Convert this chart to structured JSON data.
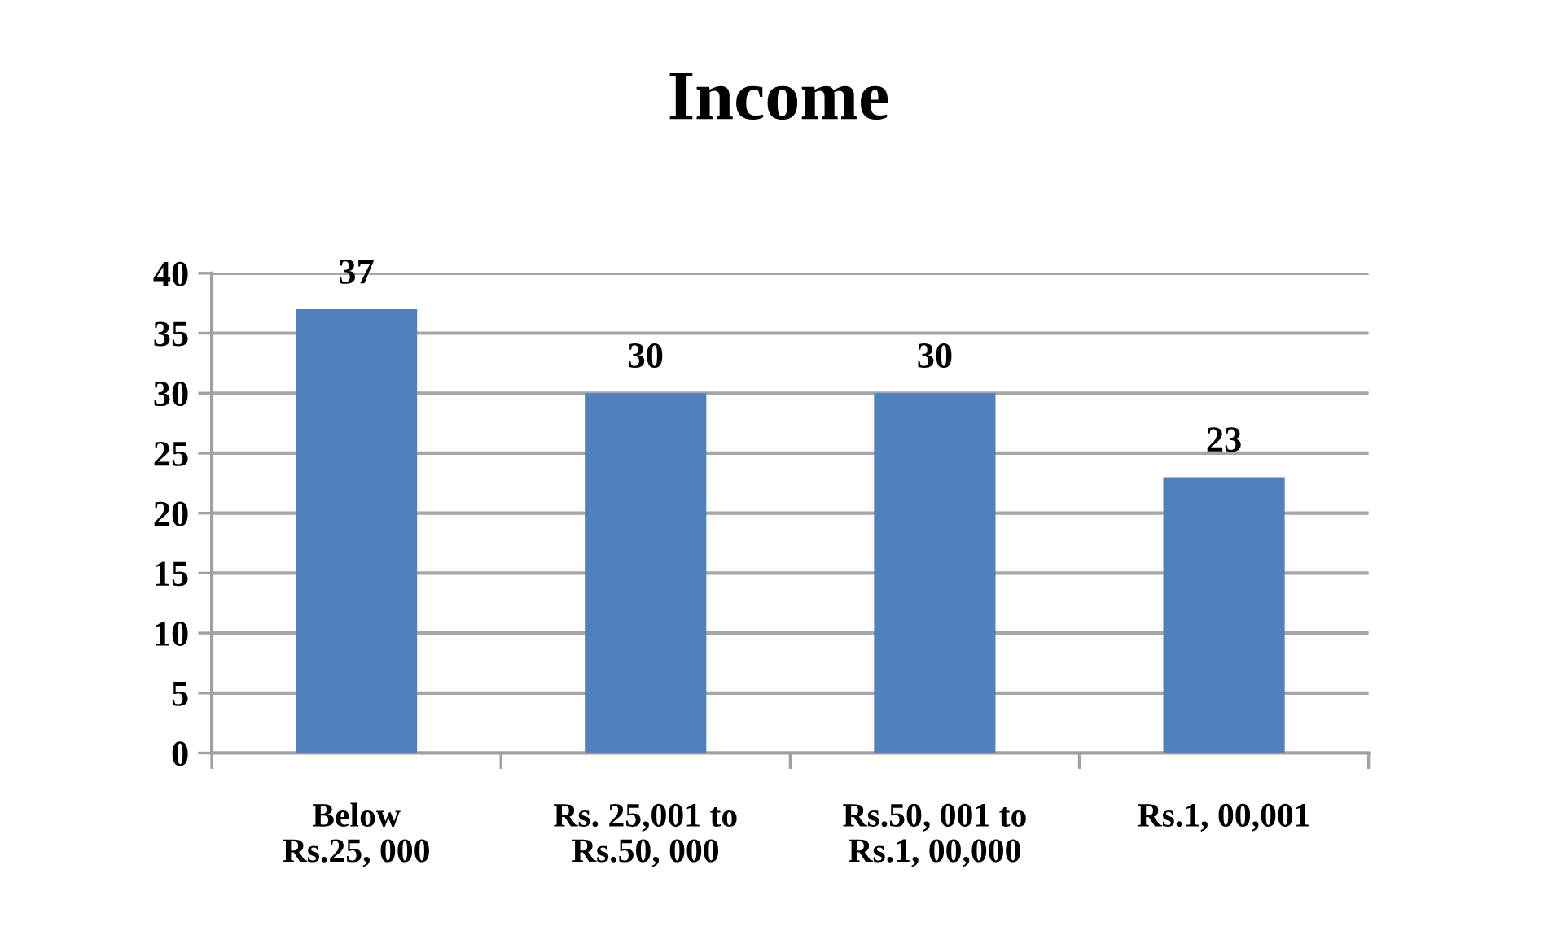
{
  "chart_data": {
    "type": "bar",
    "title": "Income",
    "categories": [
      "Below\nRs.25, 000",
      "Rs. 25,001 to\nRs.50, 000",
      "Rs.50, 001 to\nRs.1, 00,000",
      "Rs.1, 00,001"
    ],
    "values": [
      37,
      30,
      30,
      23
    ],
    "color": "#4f81bd",
    "ylim": [
      0,
      40
    ],
    "yticks": [
      0,
      5,
      10,
      15,
      20,
      25,
      30,
      35,
      40
    ],
    "grid": "y",
    "data_labels": true
  }
}
